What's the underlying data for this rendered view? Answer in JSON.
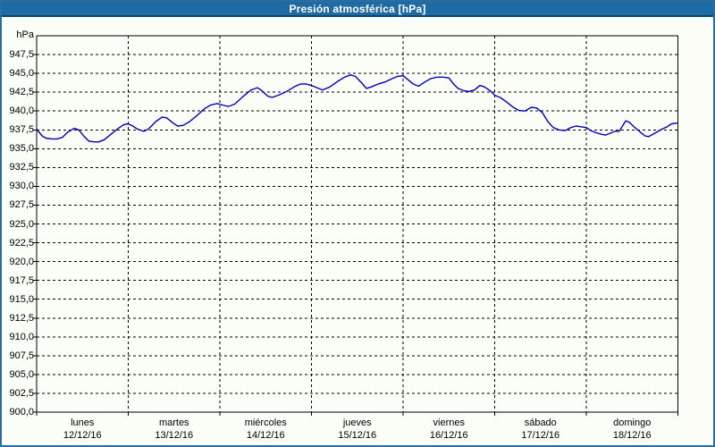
{
  "title_bar": {
    "title": "Presión atmosférica [hPa]"
  },
  "colors": {
    "frame_blue": "#2a6d9e",
    "title_bar_blue": "#1d6ba5",
    "title_bar_border": "#0e456b",
    "line_blue": "#0000bb",
    "background": "#fbfdf7",
    "grid": "#000000"
  },
  "chart_data": {
    "type": "line",
    "title": "Presión atmosférica [hPa]",
    "xlabel": "",
    "ylabel": "hPa",
    "ylim": [
      900,
      950
    ],
    "ytick_step": 2.5,
    "grid": "dashed",
    "legend_position": "none",
    "yticks": [
      {
        "value": 947.5,
        "label": "947,5"
      },
      {
        "value": 945.0,
        "label": "945,0"
      },
      {
        "value": 942.5,
        "label": "942,5"
      },
      {
        "value": 940.0,
        "label": "940,0"
      },
      {
        "value": 937.5,
        "label": "937,5"
      },
      {
        "value": 935.0,
        "label": "935,0"
      },
      {
        "value": 932.5,
        "label": "932,5"
      },
      {
        "value": 930.0,
        "label": "930,0"
      },
      {
        "value": 927.5,
        "label": "927,5"
      },
      {
        "value": 925.0,
        "label": "925,0"
      },
      {
        "value": 922.5,
        "label": "922,5"
      },
      {
        "value": 920.0,
        "label": "920,0"
      },
      {
        "value": 917.5,
        "label": "917,5"
      },
      {
        "value": 915.0,
        "label": "915,0"
      },
      {
        "value": 912.5,
        "label": "912,5"
      },
      {
        "value": 910.0,
        "label": "910,0"
      },
      {
        "value": 907.5,
        "label": "907,5"
      },
      {
        "value": 905.0,
        "label": "905,0"
      },
      {
        "value": 902.5,
        "label": "902,5"
      },
      {
        "value": 900.0,
        "label": "900,0"
      }
    ],
    "days": [
      {
        "name": "lunes",
        "date": "12/12/16"
      },
      {
        "name": "martes",
        "date": "13/12/16"
      },
      {
        "name": "miércoles",
        "date": "14/12/16"
      },
      {
        "name": "jueves",
        "date": "15/12/16"
      },
      {
        "name": "viernes",
        "date": "16/12/16"
      },
      {
        "name": "sábado",
        "date": "17/12/16"
      },
      {
        "name": "domingo",
        "date": "18/12/16"
      }
    ],
    "series": [
      {
        "name": "Presión atmosférica",
        "color": "#0000bb",
        "points_day_value": [
          [
            0.0,
            937.6
          ],
          [
            0.06,
            936.7
          ],
          [
            0.1,
            936.4
          ],
          [
            0.17,
            936.3
          ],
          [
            0.22,
            936.3
          ],
          [
            0.28,
            936.5
          ],
          [
            0.34,
            937.2
          ],
          [
            0.41,
            937.7
          ],
          [
            0.46,
            937.5
          ],
          [
            0.52,
            936.6
          ],
          [
            0.57,
            936.0
          ],
          [
            0.63,
            935.9
          ],
          [
            0.68,
            935.9
          ],
          [
            0.74,
            936.2
          ],
          [
            0.81,
            936.9
          ],
          [
            0.88,
            937.6
          ],
          [
            0.95,
            938.2
          ],
          [
            1.0,
            938.3
          ],
          [
            1.05,
            938.0
          ],
          [
            1.1,
            937.6
          ],
          [
            1.17,
            937.3
          ],
          [
            1.22,
            937.6
          ],
          [
            1.3,
            938.6
          ],
          [
            1.37,
            939.2
          ],
          [
            1.42,
            939.1
          ],
          [
            1.49,
            938.4
          ],
          [
            1.54,
            938.0
          ],
          [
            1.6,
            938.1
          ],
          [
            1.67,
            938.6
          ],
          [
            1.76,
            939.5
          ],
          [
            1.83,
            940.3
          ],
          [
            1.9,
            940.8
          ],
          [
            1.97,
            941.0
          ],
          [
            2.03,
            940.8
          ],
          [
            2.09,
            940.6
          ],
          [
            2.16,
            940.9
          ],
          [
            2.26,
            942.0
          ],
          [
            2.34,
            942.8
          ],
          [
            2.41,
            943.1
          ],
          [
            2.46,
            942.7
          ],
          [
            2.52,
            942.0
          ],
          [
            2.57,
            941.8
          ],
          [
            2.64,
            942.1
          ],
          [
            2.73,
            942.6
          ],
          [
            2.81,
            943.2
          ],
          [
            2.88,
            943.6
          ],
          [
            2.94,
            943.6
          ],
          [
            3.0,
            943.4
          ],
          [
            3.06,
            943.1
          ],
          [
            3.12,
            942.8
          ],
          [
            3.2,
            943.2
          ],
          [
            3.28,
            943.9
          ],
          [
            3.36,
            944.5
          ],
          [
            3.43,
            944.8
          ],
          [
            3.48,
            944.6
          ],
          [
            3.55,
            943.7
          ],
          [
            3.6,
            943.0
          ],
          [
            3.65,
            943.2
          ],
          [
            3.73,
            943.6
          ],
          [
            3.81,
            943.9
          ],
          [
            3.88,
            944.3
          ],
          [
            3.94,
            944.6
          ],
          [
            4.0,
            944.7
          ],
          [
            4.05,
            944.2
          ],
          [
            4.11,
            943.6
          ],
          [
            4.17,
            943.3
          ],
          [
            4.23,
            943.8
          ],
          [
            4.3,
            944.3
          ],
          [
            4.37,
            944.5
          ],
          [
            4.44,
            944.5
          ],
          [
            4.5,
            944.4
          ],
          [
            4.55,
            943.6
          ],
          [
            4.6,
            943.0
          ],
          [
            4.66,
            942.7
          ],
          [
            4.72,
            942.6
          ],
          [
            4.78,
            942.8
          ],
          [
            4.84,
            943.4
          ],
          [
            4.89,
            943.2
          ],
          [
            4.95,
            942.7
          ],
          [
            5.0,
            942.1
          ],
          [
            5.06,
            941.8
          ],
          [
            5.13,
            941.2
          ],
          [
            5.19,
            940.6
          ],
          [
            5.26,
            940.1
          ],
          [
            5.33,
            940.0
          ],
          [
            5.4,
            940.5
          ],
          [
            5.46,
            940.4
          ],
          [
            5.52,
            939.8
          ],
          [
            5.58,
            938.6
          ],
          [
            5.64,
            937.8
          ],
          [
            5.7,
            937.5
          ],
          [
            5.77,
            937.4
          ],
          [
            5.83,
            937.8
          ],
          [
            5.89,
            938.0
          ],
          [
            5.95,
            937.9
          ],
          [
            6.0,
            937.8
          ],
          [
            6.05,
            937.4
          ],
          [
            6.11,
            937.1
          ],
          [
            6.17,
            936.9
          ],
          [
            6.21,
            936.8
          ],
          [
            6.27,
            937.1
          ],
          [
            6.31,
            937.3
          ],
          [
            6.36,
            937.3
          ],
          [
            6.43,
            938.7
          ],
          [
            6.47,
            938.5
          ],
          [
            6.53,
            937.8
          ],
          [
            6.58,
            937.3
          ],
          [
            6.64,
            936.7
          ],
          [
            6.68,
            936.6
          ],
          [
            6.74,
            937.0
          ],
          [
            6.81,
            937.5
          ],
          [
            6.88,
            937.9
          ],
          [
            6.93,
            938.3
          ],
          [
            6.99,
            938.4
          ]
        ]
      }
    ]
  }
}
